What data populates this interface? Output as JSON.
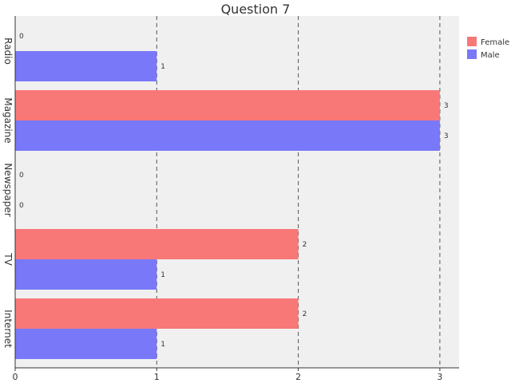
{
  "chart_data": {
    "type": "bar",
    "orientation": "horizontal",
    "title": "Question 7",
    "xlabel": "",
    "ylabel": "",
    "categories": [
      "Radio",
      "Magazine",
      "Newspaper",
      "TV",
      "Internet"
    ],
    "series": [
      {
        "name": "Female",
        "color": "#f87878",
        "values": [
          0,
          3,
          0,
          2,
          2
        ]
      },
      {
        "name": "Male",
        "color": "#7878f8",
        "values": [
          1,
          3,
          0,
          1,
          1
        ]
      }
    ],
    "xticks": [
      "0",
      "1",
      "2",
      "3"
    ],
    "xlim": [
      0,
      3.14
    ],
    "grid": "vertical-dashed",
    "legend_position": "top-right",
    "plot_background": "#f0f0f0"
  }
}
